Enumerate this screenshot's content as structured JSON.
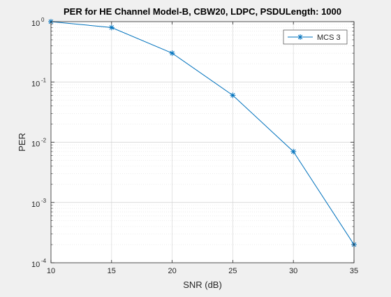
{
  "chart_data": {
    "type": "line",
    "title": "PER for HE Channel Model-B, CBW20, LDPC, PSDULength: 1000",
    "xlabel": "SNR (dB)",
    "ylabel": "PER",
    "xlim": [
      10,
      35
    ],
    "ylim": [
      0.0001,
      1
    ],
    "yscale": "log",
    "grid": true,
    "minor_grid": true,
    "legend_position": "top-right",
    "x_ticks": [
      "10",
      "15",
      "20",
      "25",
      "30",
      "35"
    ],
    "y_ticks": [
      {
        "base": "10",
        "exp": "-4"
      },
      {
        "base": "10",
        "exp": "-3"
      },
      {
        "base": "10",
        "exp": "-2"
      },
      {
        "base": "10",
        "exp": "-1"
      },
      {
        "base": "10",
        "exp": "0"
      }
    ],
    "series": [
      {
        "name": "MCS 3",
        "color": "#0072BD",
        "marker": "asterisk",
        "x": [
          10,
          15,
          20,
          25,
          30,
          35
        ],
        "y": [
          1.0,
          0.8,
          0.3,
          0.06,
          0.007,
          0.0002
        ]
      }
    ]
  }
}
